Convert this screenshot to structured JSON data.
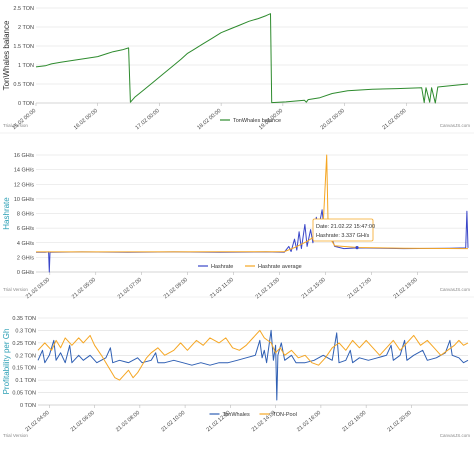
{
  "chart_data": [
    {
      "type": "line",
      "ylabel": "TonWhales balance",
      "ylim": [
        0,
        2.5
      ],
      "yticks": [
        "0 TON",
        "0.5 TON",
        "1 TON",
        "1.5 TON",
        "2 TON",
        "2.5 TON"
      ],
      "xticks": [
        "15.02 00:00",
        "16.02 00:00",
        "17.02 00:00",
        "18.02 00:00",
        "19.02 00:00",
        "20.02 00:00",
        "21.02 00:00"
      ],
      "grid": true,
      "legend": "bottom",
      "watermark": "CanvasJS.com",
      "series": [
        {
          "name": "TonWhales balance",
          "color": "#2e8b2e",
          "points": [
            [
              -0.05,
              0.95
            ],
            [
              0.1,
              0.98
            ],
            [
              0.2,
              1.03
            ],
            [
              0.35,
              1.07
            ],
            [
              0.55,
              1.12
            ],
            [
              0.75,
              1.17
            ],
            [
              0.95,
              1.22
            ],
            [
              1.1,
              1.3
            ],
            [
              1.2,
              1.35
            ],
            [
              1.35,
              1.4
            ],
            [
              1.45,
              1.45
            ],
            [
              1.48,
              0.02
            ],
            [
              1.55,
              0.15
            ],
            [
              1.7,
              0.35
            ],
            [
              1.85,
              0.55
            ],
            [
              2.0,
              0.75
            ],
            [
              2.15,
              0.95
            ],
            [
              2.3,
              1.15
            ],
            [
              2.4,
              1.3
            ],
            [
              2.5,
              1.4
            ],
            [
              2.65,
              1.55
            ],
            [
              2.8,
              1.7
            ],
            [
              2.95,
              1.85
            ],
            [
              3.1,
              1.95
            ],
            [
              3.25,
              2.05
            ],
            [
              3.4,
              2.15
            ],
            [
              3.55,
              2.22
            ],
            [
              3.68,
              2.3
            ],
            [
              3.75,
              2.35
            ],
            [
              3.77,
              0.01
            ],
            [
              4.0,
              0.03
            ],
            [
              4.3,
              0.07
            ],
            [
              4.33,
              0.02
            ],
            [
              4.36,
              0.09
            ],
            [
              4.55,
              0.14
            ],
            [
              4.75,
              0.25
            ],
            [
              5.0,
              0.32
            ],
            [
              5.4,
              0.36
            ],
            [
              5.8,
              0.38
            ],
            [
              6.2,
              0.4
            ],
            [
              6.24,
              0.01
            ],
            [
              6.27,
              0.4
            ],
            [
              6.33,
              0.02
            ],
            [
              6.36,
              0.4
            ],
            [
              6.42,
              0.0
            ],
            [
              6.46,
              0.42
            ],
            [
              6.7,
              0.46
            ],
            [
              6.95,
              0.5
            ]
          ]
        }
      ]
    },
    {
      "type": "line",
      "ylabel": "Hashrate",
      "ylim": [
        0,
        16
      ],
      "yticks": [
        "0 GH/s",
        "2 GH/s",
        "4 GH/s",
        "6 GH/s",
        "8 GH/s",
        "10 GH/s",
        "12 GH/s",
        "14 GH/s",
        "16 GH/s"
      ],
      "xticks": [
        "21.02 03:00",
        "21.02 05:00",
        "21.02 07:00",
        "21.02 09:00",
        "21.02 11:00",
        "21.02 13:00",
        "21.02 15:00",
        "21.02 17:00",
        "21.02 19:00"
      ],
      "grid": true,
      "legend": "bottom",
      "watermark": "CanvasJS.com",
      "tooltip": {
        "title": "Date: 21.02.22 15:47:00",
        "value": "Hashrate: 3.337 GH/s",
        "x": 13.97,
        "y": 3.337
      },
      "series": [
        {
          "name": "Hashrate",
          "color": "#3a46c8",
          "points": [
            [
              0.0,
              2.7
            ],
            [
              0.4,
              2.7
            ],
            [
              0.55,
              2.75
            ],
            [
              0.58,
              0.0
            ],
            [
              0.61,
              2.7
            ],
            [
              2.0,
              2.75
            ],
            [
              4.0,
              2.7
            ],
            [
              6.0,
              2.75
            ],
            [
              8.0,
              2.7
            ],
            [
              10.0,
              2.75
            ],
            [
              10.8,
              2.7
            ],
            [
              11.0,
              3.5
            ],
            [
              11.1,
              2.8
            ],
            [
              11.25,
              4.5
            ],
            [
              11.35,
              3.0
            ],
            [
              11.45,
              5.5
            ],
            [
              11.55,
              3.2
            ],
            [
              11.7,
              6.5
            ],
            [
              11.8,
              3.5
            ],
            [
              11.95,
              5.8
            ],
            [
              12.05,
              4.0
            ],
            [
              12.2,
              7.5
            ],
            [
              12.3,
              6.0
            ],
            [
              12.45,
              8.5
            ],
            [
              12.55,
              5.5
            ],
            [
              12.7,
              7.0
            ],
            [
              12.85,
              4.8
            ],
            [
              13.0,
              3.5
            ],
            [
              13.4,
              3.2
            ],
            [
              14.0,
              3.3
            ],
            [
              16.0,
              3.2
            ],
            [
              18.0,
              3.25
            ],
            [
              18.7,
              3.3
            ],
            [
              18.75,
              8.3
            ],
            [
              18.8,
              3.3
            ]
          ]
        },
        {
          "name": "Hashrate average",
          "color": "#f5a623",
          "points": [
            [
              0.0,
              2.75
            ],
            [
              10.8,
              2.78
            ],
            [
              11.3,
              3.4
            ],
            [
              11.8,
              4.2
            ],
            [
              12.2,
              5.0
            ],
            [
              12.5,
              6.5
            ],
            [
              12.65,
              16.0
            ],
            [
              12.72,
              5.0
            ],
            [
              13.0,
              3.6
            ],
            [
              14.0,
              3.35
            ],
            [
              16.0,
              3.25
            ],
            [
              18.8,
              3.2
            ]
          ]
        }
      ]
    },
    {
      "type": "line",
      "ylabel": "Profitability per Gh",
      "ylim": [
        0,
        0.35
      ],
      "yticks": [
        "0 TON",
        "0.05 TON",
        "0.1 TON",
        "0.15 TON",
        "0.2 TON",
        "0.25 TON",
        "0.3 TON",
        "0.35 TON"
      ],
      "xticks": [
        "21.02 04:00",
        "21.02 06:00",
        "21.02 08:00",
        "21.02 10:00",
        "21.02 12:00",
        "21.02 14:00",
        "21.02 16:00",
        "21.02 18:00",
        "21.02 20:00"
      ],
      "grid": true,
      "legend": "bottom",
      "watermark": "CanvasJS.com",
      "series": [
        {
          "name": "TonWhales",
          "color": "#2f5fb3",
          "points": [
            [
              2.0,
              0.18
            ],
            [
              2.2,
              0.22
            ],
            [
              2.3,
              0.17
            ],
            [
              2.5,
              0.2
            ],
            [
              2.7,
              0.26
            ],
            [
              2.8,
              0.18
            ],
            [
              3.0,
              0.21
            ],
            [
              3.2,
              0.17
            ],
            [
              3.4,
              0.24
            ],
            [
              3.5,
              0.17
            ],
            [
              3.8,
              0.2
            ],
            [
              4.0,
              0.18
            ],
            [
              4.3,
              0.2
            ],
            [
              4.6,
              0.17
            ],
            [
              5.0,
              0.19
            ],
            [
              5.2,
              0.23
            ],
            [
              5.3,
              0.17
            ],
            [
              5.6,
              0.18
            ],
            [
              6.0,
              0.17
            ],
            [
              6.4,
              0.19
            ],
            [
              6.6,
              0.17
            ],
            [
              7.0,
              0.18
            ],
            [
              7.2,
              0.21
            ],
            [
              7.3,
              0.17
            ],
            [
              7.6,
              0.17
            ],
            [
              8.0,
              0.18
            ],
            [
              8.4,
              0.17
            ],
            [
              8.8,
              0.16
            ],
            [
              9.2,
              0.17
            ],
            [
              9.6,
              0.16
            ],
            [
              10.0,
              0.17
            ],
            [
              10.4,
              0.17
            ],
            [
              10.8,
              0.18
            ],
            [
              11.2,
              0.19
            ],
            [
              11.6,
              0.2
            ],
            [
              11.8,
              0.26
            ],
            [
              11.9,
              0.19
            ],
            [
              12.0,
              0.22
            ],
            [
              12.1,
              0.17
            ],
            [
              12.3,
              0.3
            ],
            [
              12.4,
              0.18
            ],
            [
              12.5,
              0.24
            ],
            [
              12.55,
              0.02
            ],
            [
              12.6,
              0.2
            ],
            [
              12.75,
              0.25
            ],
            [
              12.9,
              0.18
            ],
            [
              13.2,
              0.2
            ],
            [
              13.4,
              0.17
            ],
            [
              13.8,
              0.17
            ],
            [
              14.2,
              0.18
            ],
            [
              14.6,
              0.2
            ],
            [
              15.0,
              0.18
            ],
            [
              15.2,
              0.29
            ],
            [
              15.3,
              0.17
            ],
            [
              15.6,
              0.18
            ],
            [
              15.8,
              0.22
            ],
            [
              15.9,
              0.17
            ],
            [
              16.2,
              0.19
            ],
            [
              16.6,
              0.18
            ],
            [
              17.0,
              0.19
            ],
            [
              17.4,
              0.2
            ],
            [
              17.6,
              0.24
            ],
            [
              17.7,
              0.18
            ],
            [
              18.0,
              0.2
            ],
            [
              18.2,
              0.26
            ],
            [
              18.3,
              0.18
            ],
            [
              18.6,
              0.2
            ],
            [
              19.0,
              0.22
            ],
            [
              19.2,
              0.18
            ],
            [
              19.6,
              0.19
            ],
            [
              20.0,
              0.21
            ],
            [
              20.2,
              0.26
            ],
            [
              20.3,
              0.2
            ],
            [
              20.6,
              0.19
            ],
            [
              20.8,
              0.17
            ],
            [
              21.0,
              0.18
            ]
          ]
        },
        {
          "name": "TON-Pool",
          "color": "#f5a623",
          "points": [
            [
              2.0,
              0.22
            ],
            [
              2.3,
              0.25
            ],
            [
              2.6,
              0.22
            ],
            [
              2.8,
              0.26
            ],
            [
              3.0,
              0.23
            ],
            [
              3.2,
              0.27
            ],
            [
              3.5,
              0.24
            ],
            [
              3.8,
              0.27
            ],
            [
              4.0,
              0.25
            ],
            [
              4.3,
              0.28
            ],
            [
              4.5,
              0.24
            ],
            [
              4.8,
              0.2
            ],
            [
              5.0,
              0.17
            ],
            [
              5.2,
              0.14
            ],
            [
              5.4,
              0.11
            ],
            [
              5.6,
              0.1
            ],
            [
              5.8,
              0.12
            ],
            [
              6.0,
              0.14
            ],
            [
              6.2,
              0.11
            ],
            [
              6.4,
              0.13
            ],
            [
              6.6,
              0.16
            ],
            [
              6.8,
              0.19
            ],
            [
              7.0,
              0.21
            ],
            [
              7.3,
              0.23
            ],
            [
              7.6,
              0.2
            ],
            [
              8.0,
              0.22
            ],
            [
              8.3,
              0.25
            ],
            [
              8.6,
              0.22
            ],
            [
              9.0,
              0.26
            ],
            [
              9.3,
              0.24
            ],
            [
              9.6,
              0.27
            ],
            [
              10.0,
              0.25
            ],
            [
              10.3,
              0.27
            ],
            [
              10.6,
              0.23
            ],
            [
              10.9,
              0.22
            ],
            [
              11.2,
              0.24
            ],
            [
              11.5,
              0.27
            ],
            [
              11.8,
              0.3
            ],
            [
              12.0,
              0.27
            ],
            [
              12.3,
              0.25
            ],
            [
              12.5,
              0.21
            ],
            [
              12.7,
              0.23
            ],
            [
              12.9,
              0.2
            ],
            [
              13.2,
              0.22
            ],
            [
              13.5,
              0.19
            ],
            [
              13.8,
              0.2
            ],
            [
              14.1,
              0.17
            ],
            [
              14.4,
              0.16
            ],
            [
              14.7,
              0.19
            ],
            [
              15.0,
              0.23
            ],
            [
              15.3,
              0.25
            ],
            [
              15.6,
              0.22
            ],
            [
              15.9,
              0.26
            ],
            [
              16.2,
              0.23
            ],
            [
              16.5,
              0.26
            ],
            [
              16.8,
              0.23
            ],
            [
              17.1,
              0.2
            ],
            [
              17.4,
              0.23
            ],
            [
              17.7,
              0.26
            ],
            [
              18.0,
              0.22
            ],
            [
              18.3,
              0.25
            ],
            [
              18.6,
              0.28
            ],
            [
              18.9,
              0.24
            ],
            [
              19.2,
              0.26
            ],
            [
              19.5,
              0.23
            ],
            [
              19.8,
              0.2
            ],
            [
              20.1,
              0.22
            ],
            [
              20.4,
              0.24
            ],
            [
              20.6,
              0.26
            ],
            [
              20.8,
              0.24
            ],
            [
              21.0,
              0.25
            ]
          ]
        }
      ]
    }
  ],
  "footer_labels": [
    "Trial Version",
    "Trial Version",
    "Trial Version"
  ]
}
